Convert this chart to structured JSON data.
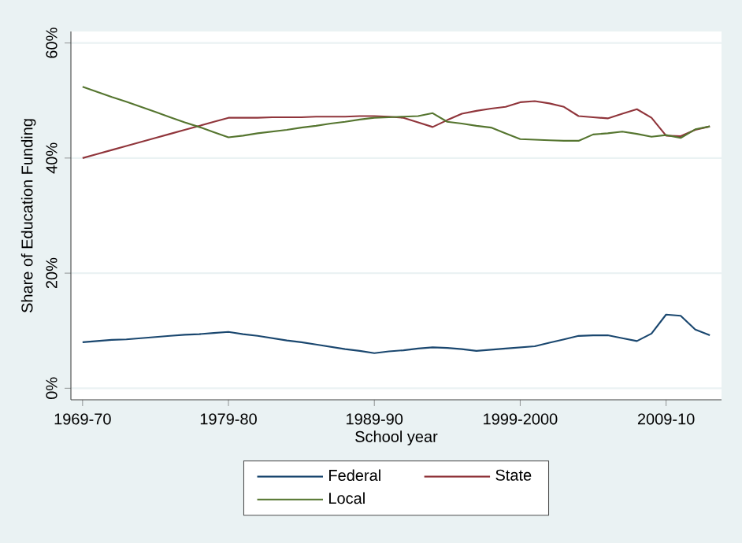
{
  "chart_data": {
    "type": "line",
    "xlabel": "School year",
    "ylabel": "Share of Education Funding",
    "categories": [
      "1969-70",
      null,
      null,
      null,
      null,
      null,
      null,
      null,
      null,
      null,
      "1979-80",
      null,
      null,
      null,
      null,
      null,
      null,
      null,
      null,
      null,
      "1989-90",
      null,
      null,
      null,
      null,
      null,
      null,
      null,
      null,
      null,
      "1999-2000",
      null,
      null,
      null,
      null,
      null,
      null,
      null,
      null,
      null,
      "2009-10",
      null,
      null,
      null
    ],
    "ylim": [
      -2,
      62
    ],
    "yticks": [
      {
        "value": 0,
        "label": "0%"
      },
      {
        "value": 20,
        "label": "20%"
      },
      {
        "value": 40,
        "label": "40%"
      },
      {
        "value": 60,
        "label": "60%"
      }
    ],
    "grid": "y",
    "legend": "bottom",
    "marker": "none",
    "line_style": "solid",
    "series": [
      {
        "name": "Federal",
        "color": "#1a476f",
        "values": [
          8.0,
          8.2,
          8.4,
          8.5,
          8.7,
          8.9,
          9.1,
          9.3,
          9.4,
          9.6,
          9.8,
          9.4,
          9.1,
          8.7,
          8.3,
          8.0,
          7.6,
          7.2,
          6.8,
          6.5,
          6.1,
          6.4,
          6.6,
          6.9,
          7.1,
          7.0,
          6.8,
          6.5,
          6.7,
          6.9,
          7.1,
          7.3,
          7.9,
          8.5,
          9.1,
          9.2,
          9.2,
          8.7,
          8.2,
          9.5,
          12.8,
          12.6,
          10.2,
          9.2
        ]
      },
      {
        "name": "State",
        "color": "#90353b",
        "values": [
          40.0,
          40.7,
          41.4,
          42.1,
          42.8,
          43.5,
          44.2,
          44.9,
          45.6,
          46.3,
          47.0,
          47.0,
          47.0,
          47.1,
          47.1,
          47.1,
          47.2,
          47.2,
          47.2,
          47.3,
          47.3,
          47.2,
          47.0,
          46.2,
          45.4,
          46.6,
          47.7,
          48.2,
          48.6,
          48.9,
          49.7,
          49.9,
          49.5,
          48.9,
          47.3,
          47.1,
          46.9,
          47.7,
          48.5,
          47.0,
          43.9,
          43.8,
          44.9,
          45.5
        ]
      },
      {
        "name": "Local",
        "color": "#55752f",
        "values": [
          52.4,
          51.5,
          50.6,
          49.8,
          48.9,
          48.0,
          47.1,
          46.2,
          45.4,
          44.5,
          43.6,
          43.9,
          44.3,
          44.6,
          44.9,
          45.3,
          45.6,
          46.0,
          46.3,
          46.7,
          47.0,
          47.1,
          47.2,
          47.3,
          47.8,
          46.3,
          46.0,
          45.6,
          45.3,
          44.3,
          43.3,
          43.2,
          43.1,
          43.0,
          43.0,
          44.1,
          44.3,
          44.6,
          44.2,
          43.7,
          44.0,
          43.5,
          45.0,
          45.5
        ]
      }
    ]
  }
}
